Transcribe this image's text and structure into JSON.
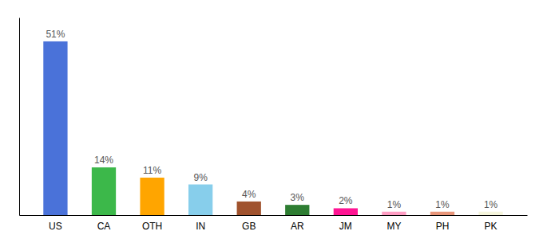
{
  "chart_data": {
    "type": "bar",
    "categories": [
      "US",
      "CA",
      "OTH",
      "IN",
      "GB",
      "AR",
      "JM",
      "MY",
      "PH",
      "PK"
    ],
    "values": [
      51,
      14,
      11,
      9,
      4,
      3,
      2,
      1,
      1,
      1
    ],
    "value_labels": [
      "51%",
      "14%",
      "11%",
      "9%",
      "4%",
      "3%",
      "2%",
      "1%",
      "1%",
      "1%"
    ],
    "colors": [
      "#4A72D9",
      "#3CB84A",
      "#FFA500",
      "#87CEEB",
      "#A0522D",
      "#2E7D32",
      "#FF1493",
      "#FF9EC4",
      "#E8967A",
      "#F5F5DC"
    ],
    "ylim": [
      0,
      58
    ],
    "data_labels": true,
    "tick_labels": "x",
    "grid": false
  }
}
